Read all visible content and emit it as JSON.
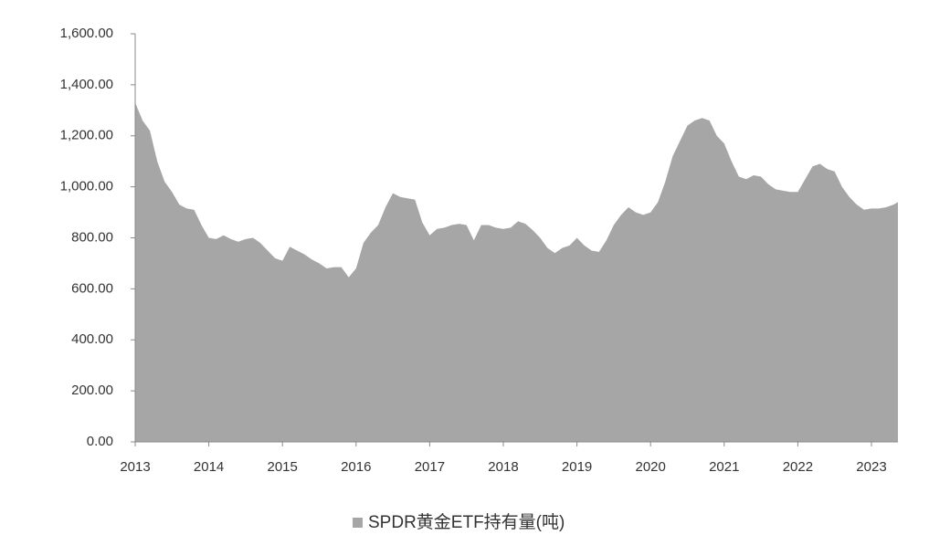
{
  "chart_data": {
    "type": "area",
    "series": [
      {
        "name": "SPDR黄金ETF持有量(吨)",
        "color": "#a6a6a6",
        "x": [
          2013.0,
          2013.1,
          2013.2,
          2013.3,
          2013.4,
          2013.5,
          2013.6,
          2013.7,
          2013.8,
          2013.9,
          2014.0,
          2014.1,
          2014.2,
          2014.3,
          2014.4,
          2014.5,
          2014.6,
          2014.7,
          2014.8,
          2014.9,
          2015.0,
          2015.1,
          2015.2,
          2015.3,
          2015.4,
          2015.5,
          2015.6,
          2015.7,
          2015.8,
          2015.9,
          2016.0,
          2016.1,
          2016.2,
          2016.3,
          2016.4,
          2016.5,
          2016.6,
          2016.7,
          2016.8,
          2016.9,
          2017.0,
          2017.1,
          2017.2,
          2017.3,
          2017.4,
          2017.5,
          2017.6,
          2017.7,
          2017.8,
          2017.9,
          2018.0,
          2018.1,
          2018.2,
          2018.3,
          2018.4,
          2018.5,
          2018.6,
          2018.7,
          2018.8,
          2018.9,
          2019.0,
          2019.1,
          2019.2,
          2019.3,
          2019.4,
          2019.5,
          2019.6,
          2019.7,
          2019.8,
          2019.9,
          2020.0,
          2020.1,
          2020.2,
          2020.3,
          2020.4,
          2020.5,
          2020.6,
          2020.7,
          2020.8,
          2020.9,
          2021.0,
          2021.1,
          2021.2,
          2021.3,
          2021.4,
          2021.5,
          2021.6,
          2021.7,
          2021.8,
          2021.9,
          2022.0,
          2022.1,
          2022.2,
          2022.3,
          2022.4,
          2022.5,
          2022.6,
          2022.7,
          2022.8,
          2022.9,
          2023.0,
          2023.1,
          2023.2,
          2023.3,
          2023.36
        ],
        "values": [
          1330,
          1260,
          1220,
          1100,
          1020,
          980,
          930,
          915,
          910,
          850,
          800,
          795,
          810,
          795,
          785,
          795,
          800,
          780,
          750,
          720,
          710,
          765,
          750,
          735,
          715,
          700,
          680,
          685,
          685,
          645,
          680,
          780,
          820,
          850,
          920,
          975,
          960,
          955,
          950,
          860,
          810,
          835,
          840,
          850,
          855,
          850,
          790,
          850,
          850,
          840,
          835,
          840,
          865,
          855,
          830,
          800,
          760,
          740,
          760,
          770,
          800,
          770,
          750,
          745,
          790,
          850,
          890,
          920,
          900,
          890,
          900,
          940,
          1020,
          1120,
          1180,
          1240,
          1260,
          1270,
          1260,
          1200,
          1170,
          1100,
          1040,
          1030,
          1045,
          1040,
          1010,
          990,
          985,
          980,
          980,
          1030,
          1080,
          1090,
          1070,
          1060,
          1000,
          960,
          930,
          910,
          915,
          915,
          920,
          930,
          940
        ]
      }
    ],
    "xlim": [
      2013,
      2023.36
    ],
    "xticks": [
      2013,
      2014,
      2015,
      2016,
      2017,
      2018,
      2019,
      2020,
      2021,
      2022,
      2023
    ],
    "ylim": [
      0,
      1600
    ],
    "yticks": [
      {
        "value": 0,
        "label": "0.00"
      },
      {
        "value": 200,
        "label": "200.00"
      },
      {
        "value": 400,
        "label": "400.00"
      },
      {
        "value": 600,
        "label": "600.00"
      },
      {
        "value": 800,
        "label": "800.00"
      },
      {
        "value": 1000,
        "label": "1,000.00"
      },
      {
        "value": 1200,
        "label": "1,200.00"
      },
      {
        "value": 1400,
        "label": "1,400.00"
      },
      {
        "value": 1600,
        "label": "1,600.00"
      }
    ],
    "legend": "bottom"
  }
}
